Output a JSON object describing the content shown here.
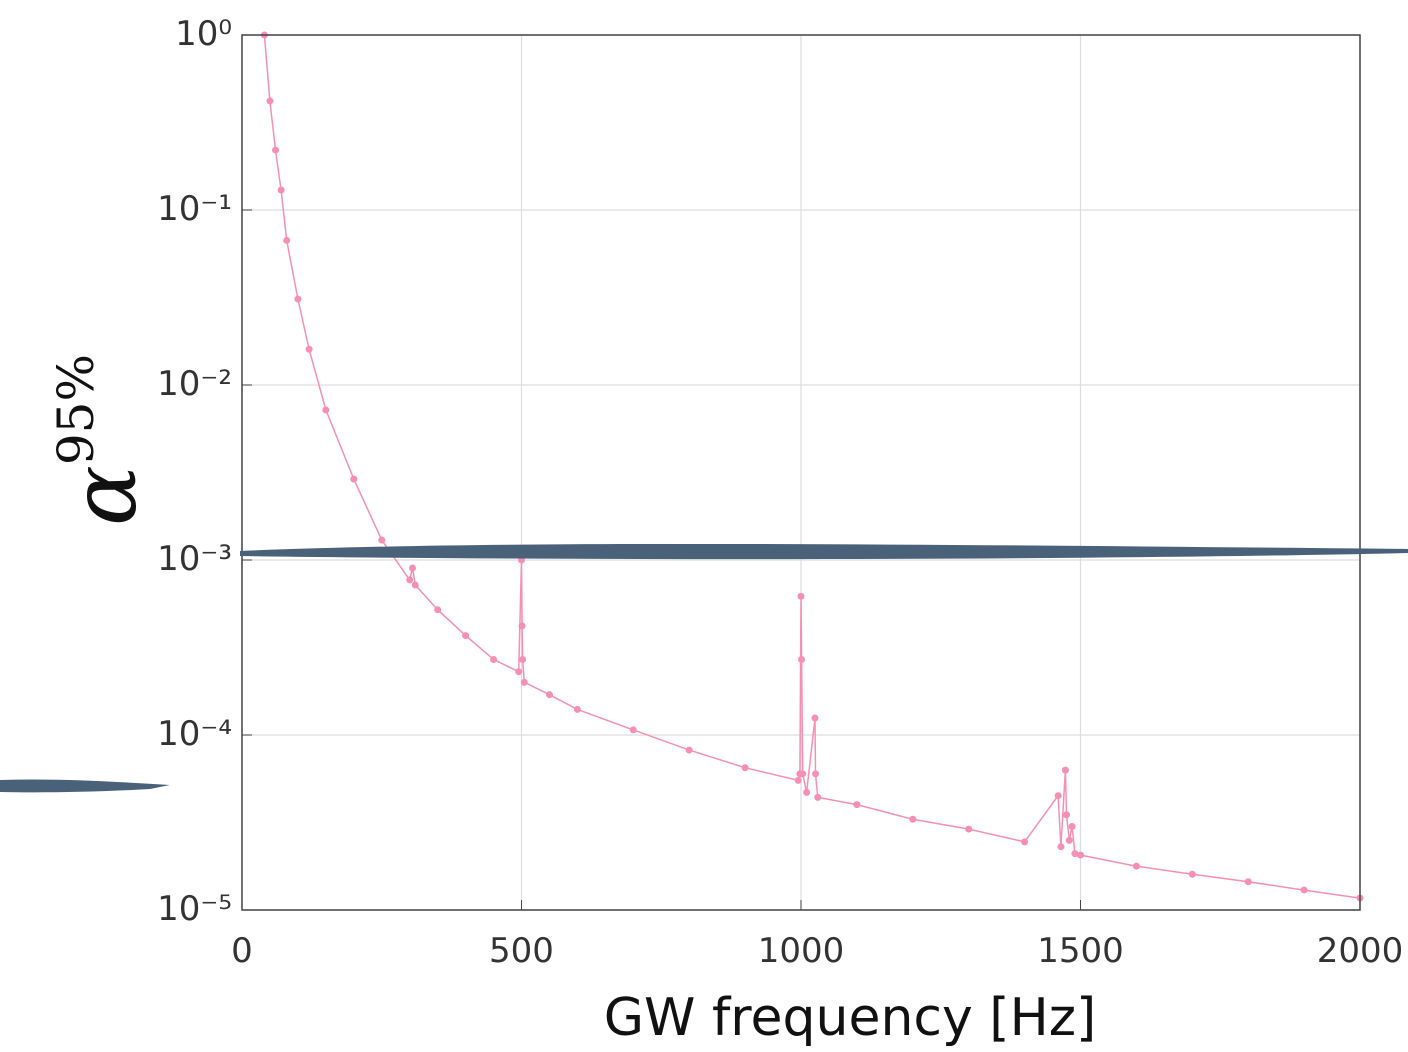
{
  "chart_data": {
    "type": "line",
    "log_y": true,
    "grid": true,
    "xlabel": "GW frequency [Hz]",
    "ylabel": [
      "α",
      "95%"
    ],
    "xlim": [
      0,
      2000
    ],
    "xticks": [
      0,
      500,
      1000,
      1500,
      2000
    ],
    "ylim": [
      1e-05,
      1
    ],
    "yticks": [
      {
        "value": 1,
        "label": "10⁰"
      },
      {
        "value": 0.1,
        "label": "10⁻¹"
      },
      {
        "value": 0.01,
        "label": "10⁻²"
      },
      {
        "value": 0.001,
        "label": "10⁻³"
      },
      {
        "value": 0.0001,
        "label": "10⁻⁴"
      },
      {
        "value": 1e-05,
        "label": "10⁻⁵"
      }
    ],
    "color": "#f78fb3",
    "x": [
      40,
      50,
      60,
      70,
      80,
      100,
      120,
      150,
      200,
      250,
      300,
      305,
      310,
      350,
      400,
      450,
      495,
      500,
      501,
      502,
      505,
      550,
      600,
      700,
      800,
      900,
      995,
      998,
      1000,
      1001,
      1003,
      1010,
      1025,
      1026,
      1030,
      1100,
      1200,
      1300,
      1400,
      1460,
      1465,
      1473,
      1475,
      1480,
      1485,
      1490,
      1500,
      1600,
      1700,
      1800,
      1900,
      2000
    ],
    "values": [
      1.0,
      0.42,
      0.22,
      0.13,
      0.067,
      0.031,
      0.016,
      0.0072,
      0.0029,
      0.0013,
      0.00077,
      0.0009,
      0.00072,
      0.00052,
      0.00037,
      0.00027,
      0.00023,
      0.001,
      0.00042,
      0.00027,
      0.0002,
      0.00017,
      0.00014,
      0.000107,
      8.2e-05,
      6.5e-05,
      5.5e-05,
      6e-05,
      0.00062,
      0.00027,
      6e-05,
      4.7e-05,
      0.000125,
      6e-05,
      4.4e-05,
      4e-05,
      3.3e-05,
      2.9e-05,
      2.45e-05,
      4.5e-05,
      2.3e-05,
      6.3e-05,
      3.5e-05,
      2.5e-05,
      3e-05,
      2.1e-05,
      2.06e-05,
      1.78e-05,
      1.6e-05,
      1.45e-05,
      1.3e-05,
      1.17e-05
    ]
  }
}
